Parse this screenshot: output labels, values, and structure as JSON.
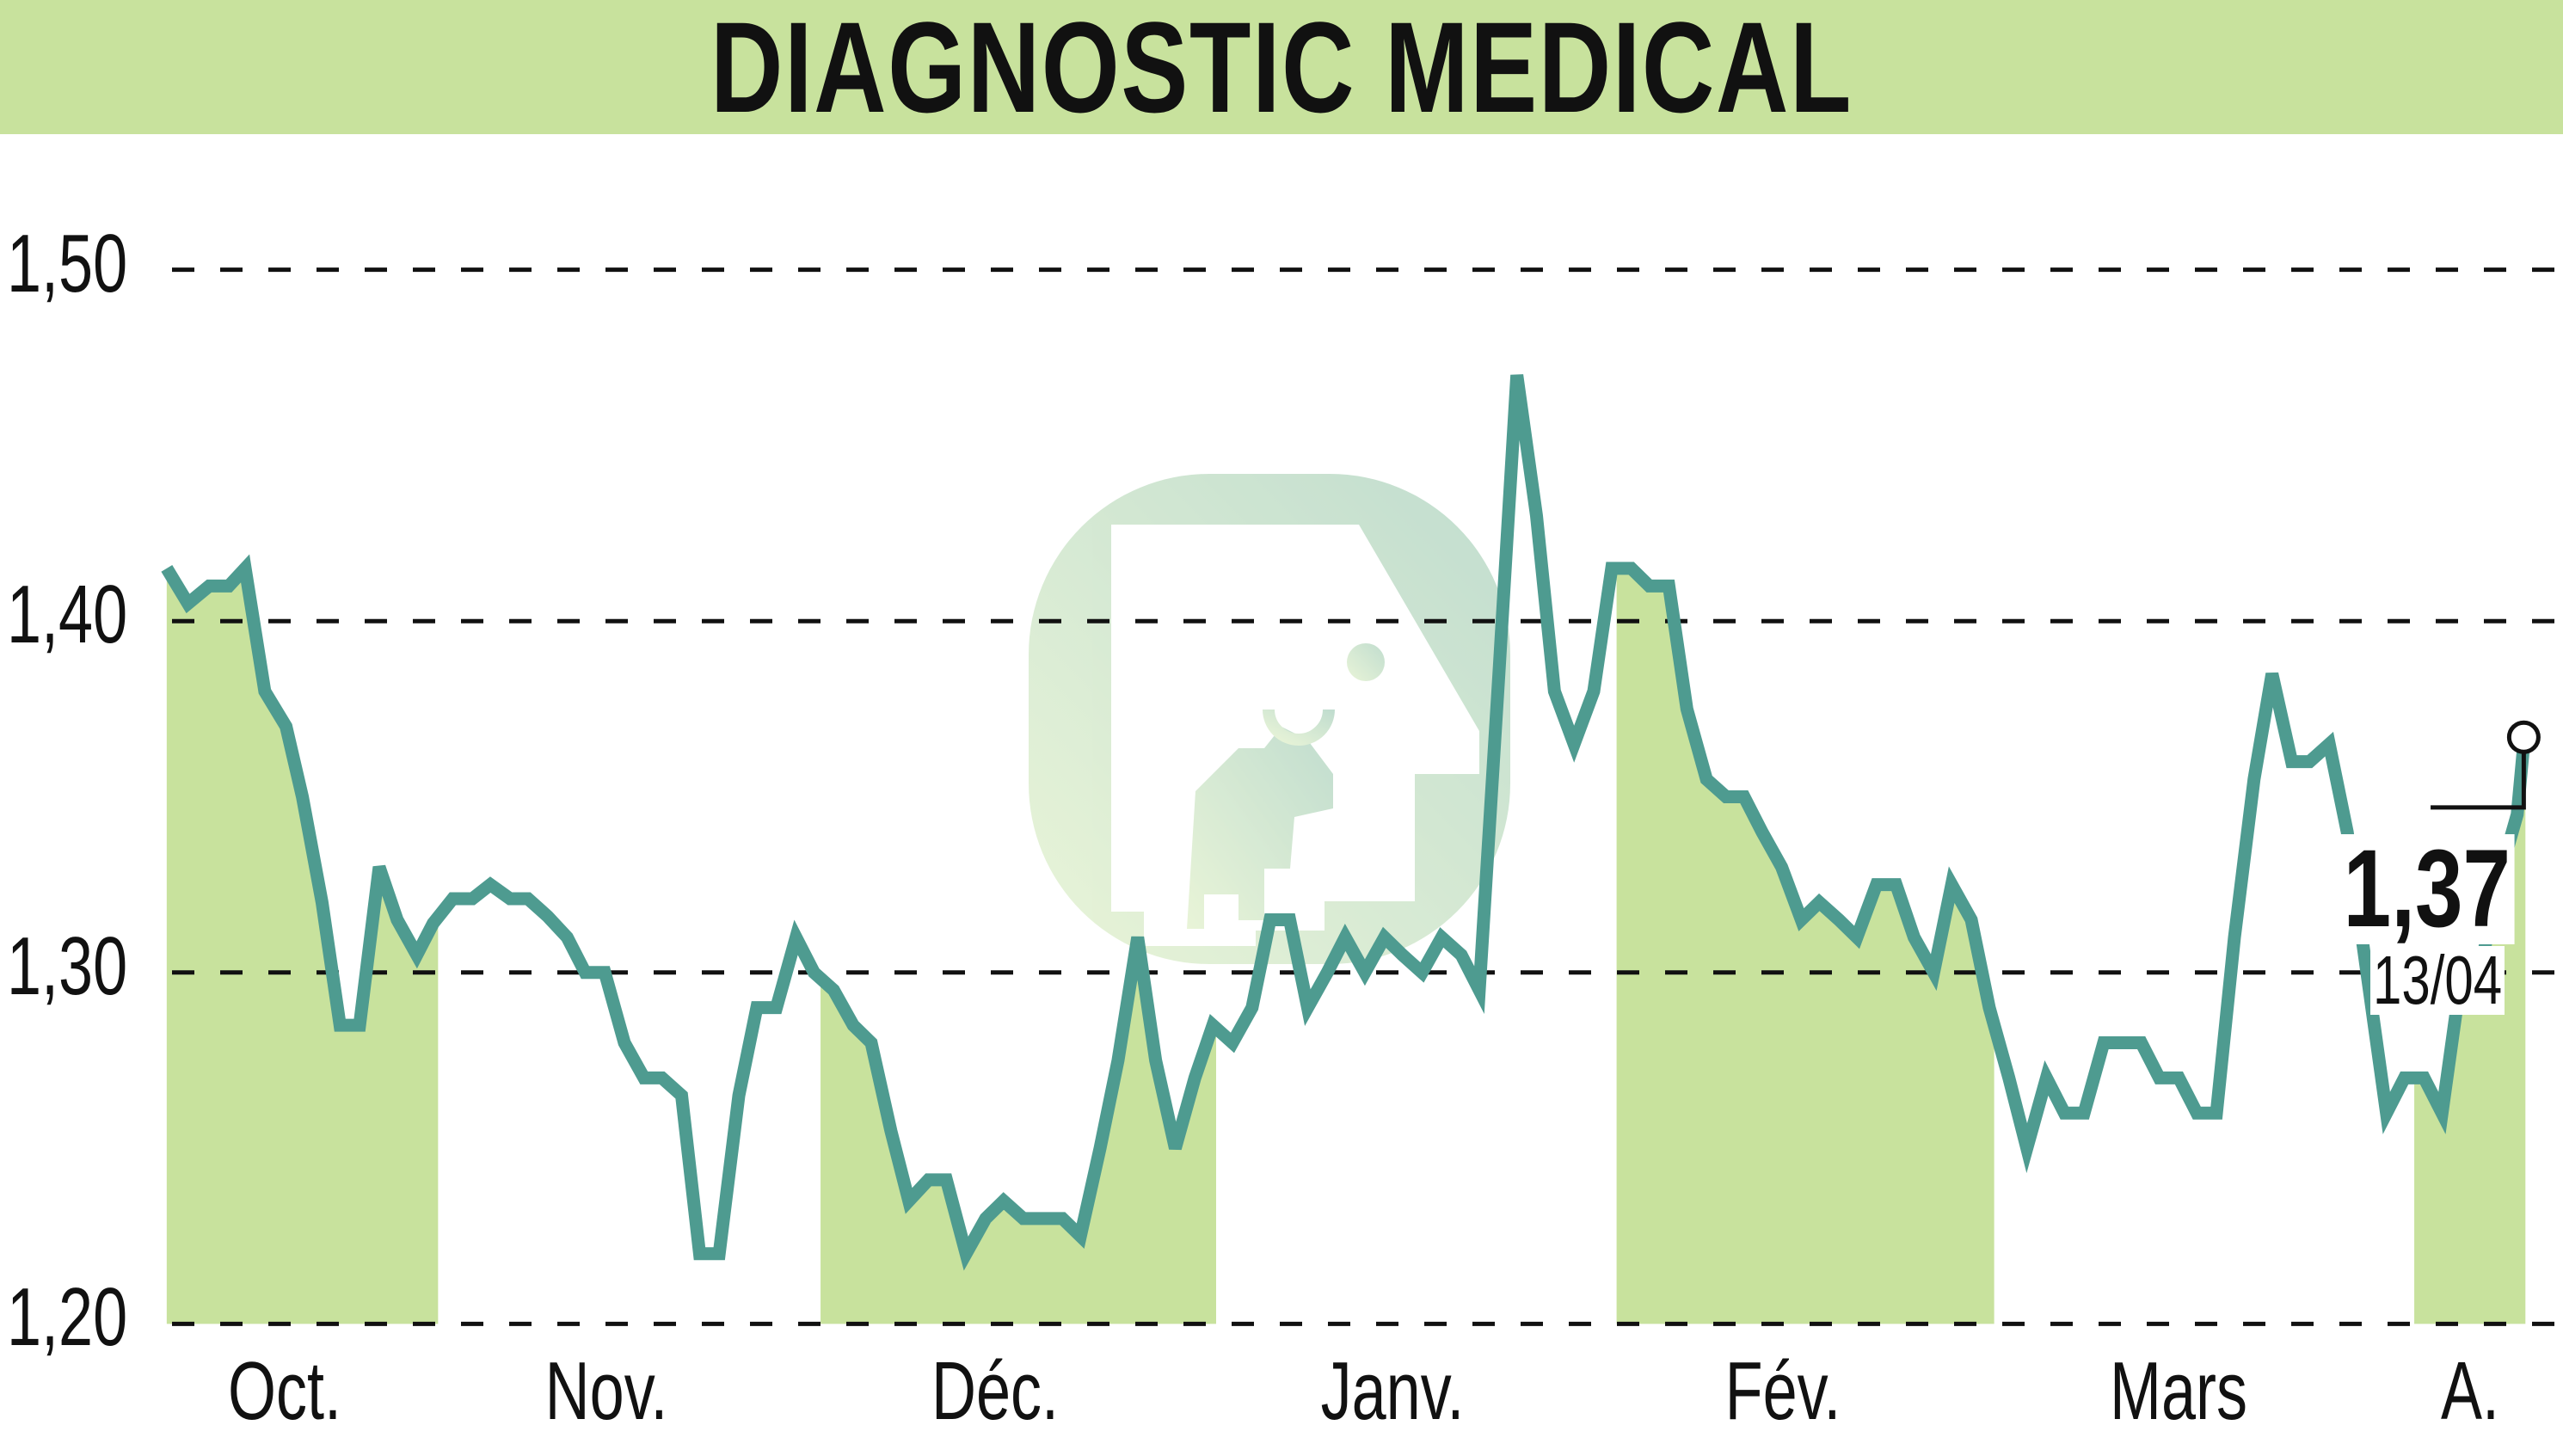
{
  "header": {
    "title": "DIAGNOSTIC MEDICAL"
  },
  "colors": {
    "header_bg": "#c8e29d",
    "band_fill": "#c8e29d",
    "line": "#4e9b90",
    "grid": "#111111",
    "logo": "#b8d9b0"
  },
  "last_point": {
    "value": "1,37",
    "date": "13/04"
  },
  "chart_data": {
    "type": "line",
    "title": "DIAGNOSTIC MEDICAL",
    "xlabel": "",
    "ylabel": "",
    "ylim": [
      1.2,
      1.5
    ],
    "yticks": [
      "1,50",
      "1,40",
      "1,30",
      "1,20"
    ],
    "ytick_values": [
      1.5,
      1.4,
      1.3,
      1.2
    ],
    "grid": "horizontal dashed",
    "legend": "none",
    "month_labels": [
      {
        "label": "Oct.",
        "x": 174
      },
      {
        "label": "Nov.",
        "x": 371
      },
      {
        "label": "Déc.",
        "x": 609
      },
      {
        "label": "Janv.",
        "x": 852
      },
      {
        "label": "Fév.",
        "x": 1091
      },
      {
        "label": "Mars",
        "x": 1333
      },
      {
        "label": "A.",
        "x": 1511
      }
    ],
    "shaded_bands": [
      [
        102,
        268
      ],
      [
        502,
        744
      ],
      [
        989,
        1220
      ],
      [
        1477,
        1545
      ]
    ],
    "x": [
      102,
      115,
      128,
      140,
      150,
      162,
      175,
      185,
      197,
      208,
      220,
      232,
      243,
      255,
      265,
      277,
      289,
      300,
      312,
      323,
      335,
      347,
      358,
      370,
      382,
      394,
      405,
      417,
      428,
      440,
      452,
      463,
      475,
      487,
      498,
      510,
      522,
      533,
      545,
      556,
      568,
      579,
      591,
      603,
      614,
      626,
      638,
      650,
      661,
      673,
      684,
      696,
      707,
      719,
      731,
      742,
      754,
      766,
      777,
      789,
      800,
      812,
      823,
      835,
      847,
      858,
      870,
      882,
      894,
      905,
      917,
      928,
      940,
      951,
      963,
      975,
      986,
      998,
      1009,
      1021,
      1032,
      1044,
      1056,
      1067,
      1078,
      1090,
      1102,
      1113,
      1125,
      1136,
      1148,
      1160,
      1171,
      1183,
      1194,
      1206,
      1217,
      1229,
      1240,
      1252,
      1263,
      1275,
      1287,
      1298,
      1310,
      1321,
      1333,
      1344,
      1356,
      1367,
      1379,
      1390,
      1402,
      1413,
      1425,
      1436,
      1448,
      1460,
      1471,
      1483,
      1494,
      1506,
      1517,
      1529,
      1540,
      1544
    ],
    "values": [
      1.415,
      1.405,
      1.41,
      1.41,
      1.415,
      1.38,
      1.37,
      1.35,
      1.32,
      1.285,
      1.285,
      1.33,
      1.315,
      1.305,
      1.314,
      1.321,
      1.321,
      1.325,
      1.321,
      1.321,
      1.316,
      1.31,
      1.3,
      1.3,
      1.28,
      1.27,
      1.27,
      1.265,
      1.22,
      1.22,
      1.265,
      1.29,
      1.29,
      1.31,
      1.3,
      1.295,
      1.285,
      1.28,
      1.255,
      1.235,
      1.241,
      1.241,
      1.22,
      1.23,
      1.235,
      1.23,
      1.23,
      1.23,
      1.225,
      1.25,
      1.275,
      1.31,
      1.275,
      1.25,
      1.27,
      1.285,
      1.28,
      1.29,
      1.315,
      1.315,
      1.29,
      1.3,
      1.31,
      1.3,
      1.31,
      1.305,
      1.3,
      1.31,
      1.305,
      1.295,
      1.385,
      1.47,
      1.43,
      1.38,
      1.365,
      1.38,
      1.415,
      1.415,
      1.41,
      1.41,
      1.375,
      1.355,
      1.35,
      1.35,
      1.34,
      1.33,
      1.315,
      1.32,
      1.315,
      1.31,
      1.325,
      1.325,
      1.31,
      1.3,
      1.325,
      1.315,
      1.29,
      1.27,
      1.25,
      1.27,
      1.26,
      1.26,
      1.28,
      1.28,
      1.28,
      1.27,
      1.27,
      1.26,
      1.26,
      1.31,
      1.355,
      1.385,
      1.36,
      1.36,
      1.365,
      1.34,
      1.3,
      1.26,
      1.27,
      1.27,
      1.26,
      1.3,
      1.3,
      1.327,
      1.345,
      1.365
    ]
  }
}
